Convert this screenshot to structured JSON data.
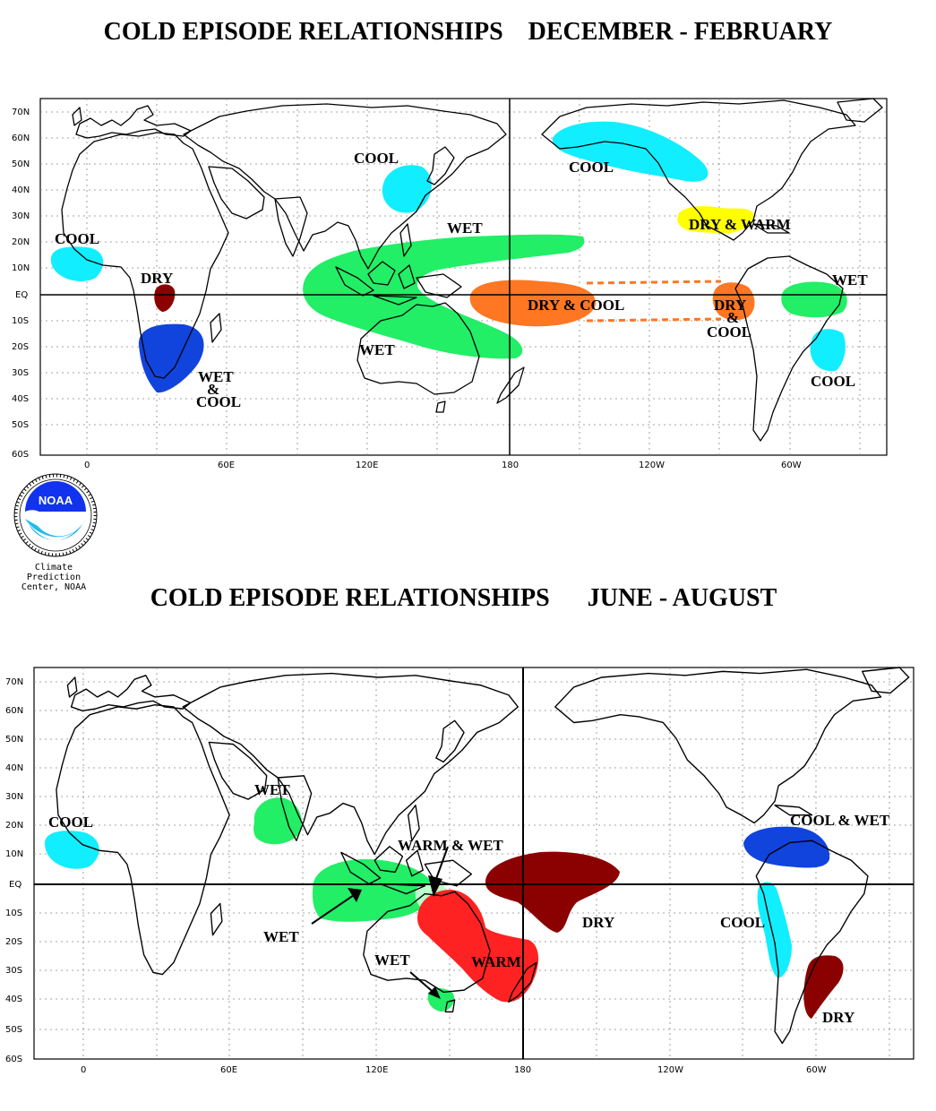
{
  "colors": {
    "wet": "#22ee66",
    "cool": "#11eeff",
    "dry": "#8b0000",
    "warm": "#ff2222",
    "dry_warm": "#ffff00",
    "dry_cool": "#ff7722",
    "wet_cool": "#1144dd",
    "cool_wet": "#1144dd",
    "warm_wet": "#bbffcc"
  },
  "winter": {
    "title": "COLD EPISODE RELATIONSHIPS    DECEMBER - FEBRUARY",
    "labels": {
      "cool_africa": "COOL",
      "dry_africa": "DRY",
      "wet_cool_1": "WET",
      "wet_cool_2": "&",
      "wet_cool_3": "COOL",
      "cool_japan": "COOL",
      "wet_north": "WET",
      "wet_south": "WET",
      "dry_cool_pacific": "DRY & COOL",
      "cool_alaska": "COOL",
      "dry_warm": "DRY & WARM",
      "dry_cool_east_1": "DRY",
      "dry_cool_east_2": "&",
      "dry_cool_east_3": "COOL",
      "wet_brazil": "WET",
      "cool_sa": "COOL"
    }
  },
  "summer": {
    "title": "COLD EPISODE RELATIONSHIPS      JUNE - AUGUST",
    "labels": {
      "cool_africa": "COOL",
      "wet_india": "WET",
      "warm_wet": "WARM & WET",
      "wet_indo": "WET",
      "wet_aus": "WET",
      "warm_aus": "WARM",
      "dry_pacific": "DRY",
      "cool_wet": "COOL & WET",
      "cool_sa": "COOL",
      "dry_sa": "DRY"
    }
  },
  "axes": {
    "lat_ticks": [
      "70N",
      "60N",
      "50N",
      "40N",
      "30N",
      "20N",
      "10N",
      "EQ",
      "10S",
      "20S",
      "30S",
      "40S",
      "50S",
      "60S"
    ],
    "lon_ticks": [
      "0",
      "60E",
      "120E",
      "180",
      "120W",
      "60W"
    ]
  },
  "logo": {
    "name": "NOAA",
    "caption_1": "Climate",
    "caption_2": "Prediction",
    "caption_3": "Center, NOAA"
  }
}
